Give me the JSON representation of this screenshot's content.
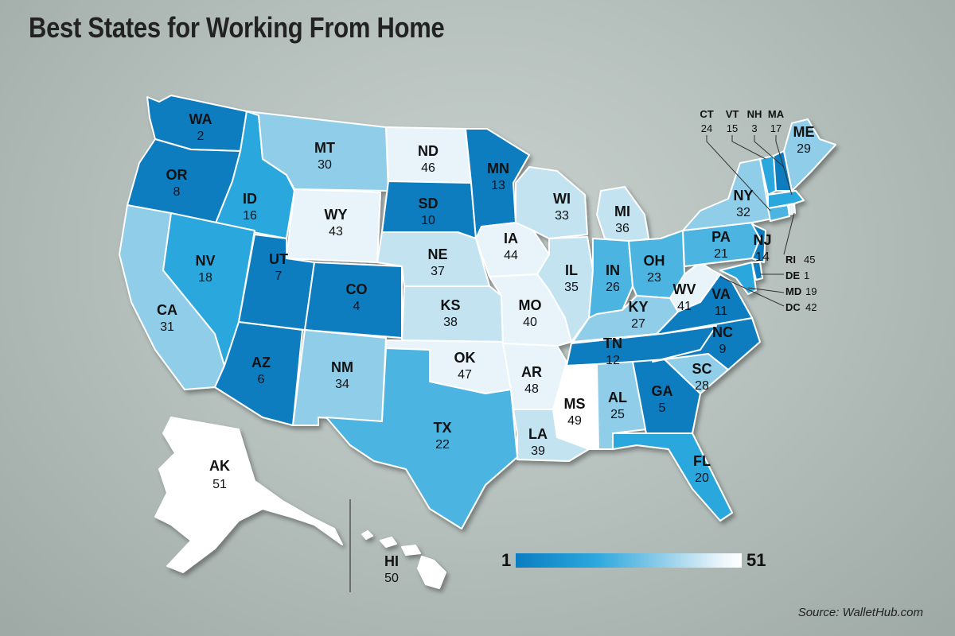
{
  "title": "Best States for Working From Home",
  "source": "Source: WalletHub.com",
  "legend": {
    "min": "1",
    "max": "51"
  },
  "colors": {
    "shade1": "#0b7dc0",
    "shade2": "#2ba7dd",
    "shade3": "#8fcde9",
    "shade4": "#e8f4fa",
    "shade5": "#ffffff"
  },
  "states": [
    {
      "abbr": "WA",
      "rank": "2"
    },
    {
      "abbr": "OR",
      "rank": "8"
    },
    {
      "abbr": "CA",
      "rank": "31"
    },
    {
      "abbr": "ID",
      "rank": "16"
    },
    {
      "abbr": "NV",
      "rank": "18"
    },
    {
      "abbr": "MT",
      "rank": "30"
    },
    {
      "abbr": "WY",
      "rank": "43"
    },
    {
      "abbr": "UT",
      "rank": "7"
    },
    {
      "abbr": "AZ",
      "rank": "6"
    },
    {
      "abbr": "CO",
      "rank": "4"
    },
    {
      "abbr": "NM",
      "rank": "34"
    },
    {
      "abbr": "ND",
      "rank": "46"
    },
    {
      "abbr": "SD",
      "rank": "10"
    },
    {
      "abbr": "NE",
      "rank": "37"
    },
    {
      "abbr": "KS",
      "rank": "38"
    },
    {
      "abbr": "OK",
      "rank": "47"
    },
    {
      "abbr": "TX",
      "rank": "22"
    },
    {
      "abbr": "MN",
      "rank": "13"
    },
    {
      "abbr": "IA",
      "rank": "44"
    },
    {
      "abbr": "MO",
      "rank": "40"
    },
    {
      "abbr": "AR",
      "rank": "48"
    },
    {
      "abbr": "LA",
      "rank": "39"
    },
    {
      "abbr": "WI",
      "rank": "33"
    },
    {
      "abbr": "IL",
      "rank": "35"
    },
    {
      "abbr": "MI",
      "rank": "36"
    },
    {
      "abbr": "IN",
      "rank": "26"
    },
    {
      "abbr": "OH",
      "rank": "23"
    },
    {
      "abbr": "KY",
      "rank": "27"
    },
    {
      "abbr": "TN",
      "rank": "12"
    },
    {
      "abbr": "MS",
      "rank": "49"
    },
    {
      "abbr": "AL",
      "rank": "25"
    },
    {
      "abbr": "GA",
      "rank": "5"
    },
    {
      "abbr": "FL",
      "rank": "20"
    },
    {
      "abbr": "SC",
      "rank": "28"
    },
    {
      "abbr": "NC",
      "rank": "9"
    },
    {
      "abbr": "VA",
      "rank": "11"
    },
    {
      "abbr": "WV",
      "rank": "41"
    },
    {
      "abbr": "PA",
      "rank": "21"
    },
    {
      "abbr": "NY",
      "rank": "32"
    },
    {
      "abbr": "NJ",
      "rank": "14"
    },
    {
      "abbr": "ME",
      "rank": "29"
    },
    {
      "abbr": "AK",
      "rank": "51"
    },
    {
      "abbr": "HI",
      "rank": "50"
    },
    {
      "abbr": "CT",
      "rank": "24"
    },
    {
      "abbr": "VT",
      "rank": "15"
    },
    {
      "abbr": "NH",
      "rank": "3"
    },
    {
      "abbr": "MA",
      "rank": "17"
    },
    {
      "abbr": "RI",
      "rank": "45"
    },
    {
      "abbr": "DE",
      "rank": "1"
    },
    {
      "abbr": "MD",
      "rank": "19"
    },
    {
      "abbr": "DC",
      "rank": "42"
    }
  ]
}
